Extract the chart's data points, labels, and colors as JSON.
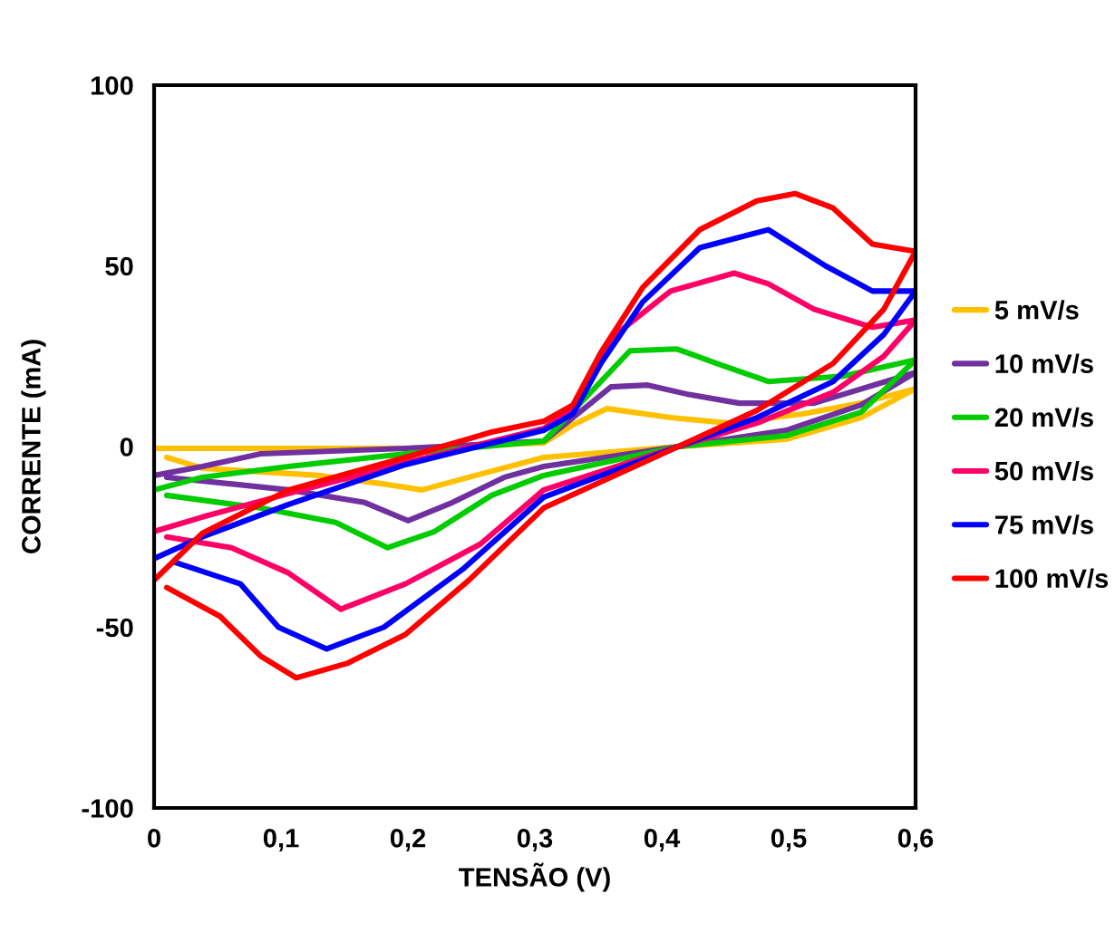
{
  "chart_data": {
    "type": "line",
    "xlabel": "TENSÃO (V)",
    "ylabel": "CORRENTE (mA)",
    "xlim": [
      0,
      0.6
    ],
    "xticks": [
      0,
      {
        "value": 0.1,
        "label": "0,1"
      },
      {
        "value": 0.2,
        "label": "0,2"
      },
      {
        "value": 0.3,
        "label": "0,3"
      },
      {
        "value": 0.4,
        "label": "0,4"
      },
      {
        "value": 0.5,
        "label": "0,5"
      },
      {
        "value": 0.6,
        "label": "0,6"
      }
    ],
    "ylim": [
      -100,
      100
    ],
    "yticks": [
      -100,
      -50,
      0,
      50,
      100
    ],
    "grid": false,
    "legend": "right",
    "marker": "none",
    "line_style": "solid",
    "series": [
      {
        "name": "5 mV/s",
        "color": "#ffc000",
        "x": [
          0.01,
          0.038,
          0.13,
          0.184,
          0.211,
          0.248,
          0.307,
          0.413,
          0.498,
          0.557,
          0.6,
          0.557,
          0.511,
          0.452,
          0.407,
          0.357,
          0.33,
          0.307,
          0.2,
          0
        ],
        "values": [
          -3,
          -6,
          -8,
          -10.5,
          -12,
          -8.5,
          -3,
          0,
          2,
          8,
          16,
          12,
          9,
          6.5,
          8,
          10.5,
          6,
          1,
          -0.5,
          -0.5
        ]
      },
      {
        "name": "10 mV/s",
        "color": "#7030a0",
        "x": [
          0.01,
          0.106,
          0.166,
          0.2,
          0.235,
          0.276,
          0.307,
          0.413,
          0.498,
          0.557,
          0.6,
          0.52,
          0.461,
          0.42,
          0.389,
          0.36,
          0.33,
          0.307,
          0.198,
          0.084,
          0.038,
          0
        ],
        "values": [
          -8.5,
          -12,
          -15.5,
          -20.5,
          -15.5,
          -8.5,
          -5.5,
          0,
          4.5,
          11.5,
          20.5,
          12,
          12,
          14.5,
          17,
          16.5,
          8,
          1.5,
          -0.5,
          -2,
          -5.5,
          -8
        ]
      },
      {
        "name": "20 mV/s",
        "color": "#00cc00",
        "x": [
          0.01,
          0.084,
          0.143,
          0.184,
          0.221,
          0.266,
          0.307,
          0.413,
          0.498,
          0.557,
          0.6,
          0.543,
          0.484,
          0.443,
          0.412,
          0.375,
          0.321,
          0.307,
          0.198,
          0.106,
          0.038,
          0
        ],
        "values": [
          -13.5,
          -17,
          -21,
          -28,
          -23.5,
          -13.5,
          -8,
          0,
          3,
          9.5,
          24,
          19.5,
          18,
          23,
          27,
          26.5,
          6.5,
          1.5,
          -2,
          -5.5,
          -8.5,
          -12
        ]
      },
      {
        "name": "50 mV/s",
        "color": "#ff0066",
        "x": [
          0.01,
          0.061,
          0.106,
          0.147,
          0.198,
          0.257,
          0.307,
          0.413,
          0.475,
          0.535,
          0.575,
          0.6,
          0.566,
          0.52,
          0.484,
          0.457,
          0.407,
          0.36,
          0.334,
          0.307,
          0.198,
          0.106,
          0.038,
          0
        ],
        "values": [
          -25,
          -28,
          -35,
          -45,
          -38,
          -27,
          -12,
          0,
          6.5,
          15,
          25,
          35,
          33,
          38,
          45,
          48,
          43,
          30,
          11.5,
          5,
          -4.5,
          -13,
          -19.5,
          -23.5
        ]
      },
      {
        "name": "75 mV/s",
        "color": "#0000ff",
        "x": [
          0.016,
          0.068,
          0.098,
          0.136,
          0.181,
          0.243,
          0.307,
          0.413,
          0.475,
          0.535,
          0.575,
          0.6,
          0.566,
          0.529,
          0.484,
          0.43,
          0.385,
          0.352,
          0.33,
          0.307,
          0.198,
          0.106,
          0.038,
          0
        ],
        "values": [
          -32,
          -38,
          -50,
          -56,
          -50,
          -34,
          -14,
          0,
          8,
          18,
          31,
          43,
          43,
          50,
          60,
          55,
          40,
          23,
          9,
          4.5,
          -5,
          -16,
          -25,
          -31
        ]
      },
      {
        "name": "100 mV/s",
        "color": "#ff0000",
        "x": [
          0.01,
          0.052,
          0.084,
          0.112,
          0.152,
          0.198,
          0.248,
          0.307,
          0.413,
          0.475,
          0.535,
          0.575,
          0.6,
          0.566,
          0.535,
          0.505,
          0.475,
          0.43,
          0.385,
          0.352,
          0.33,
          0.307,
          0.266,
          0.198,
          0.106,
          0.038,
          0
        ],
        "values": [
          -39,
          -47,
          -58,
          -64,
          -60,
          -52,
          -37,
          -17,
          0,
          10,
          23,
          38,
          54,
          56,
          66,
          70,
          68,
          60,
          44,
          26,
          11.5,
          7,
          4,
          -3,
          -12,
          -24,
          -37
        ]
      }
    ]
  }
}
